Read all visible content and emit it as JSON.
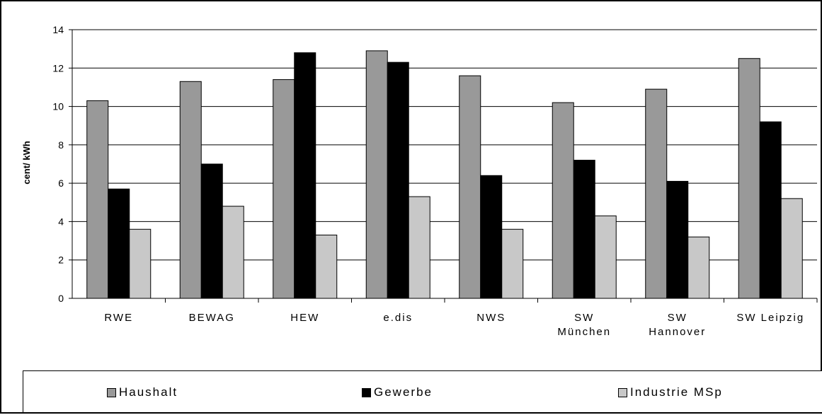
{
  "chart_data": {
    "type": "bar",
    "title": "",
    "xlabel": "",
    "ylabel": "cent/ kWh",
    "ylim": [
      0,
      14
    ],
    "yticks": [
      0,
      2,
      4,
      6,
      8,
      10,
      12,
      14
    ],
    "grid": true,
    "legend_position": "bottom",
    "categories": [
      [
        "RWE"
      ],
      [
        "BEWAG"
      ],
      [
        "HEW"
      ],
      [
        "e.dis"
      ],
      [
        "NWS"
      ],
      [
        "SW",
        "München"
      ],
      [
        "SW",
        "Hannover"
      ],
      [
        "SW Leipzig"
      ]
    ],
    "series": [
      {
        "name": "Haushalt",
        "color": "#999999",
        "values": [
          10.3,
          11.3,
          11.4,
          12.9,
          11.6,
          10.2,
          10.9,
          12.5
        ]
      },
      {
        "name": "Gewerbe",
        "color": "#000000",
        "values": [
          5.7,
          7.0,
          12.8,
          12.3,
          6.4,
          7.2,
          6.1,
          9.2
        ]
      },
      {
        "name": "Industrie MSp",
        "color": "#c8c8c8",
        "values": [
          3.6,
          4.8,
          3.3,
          5.3,
          3.6,
          4.3,
          3.2,
          5.2
        ]
      }
    ]
  }
}
